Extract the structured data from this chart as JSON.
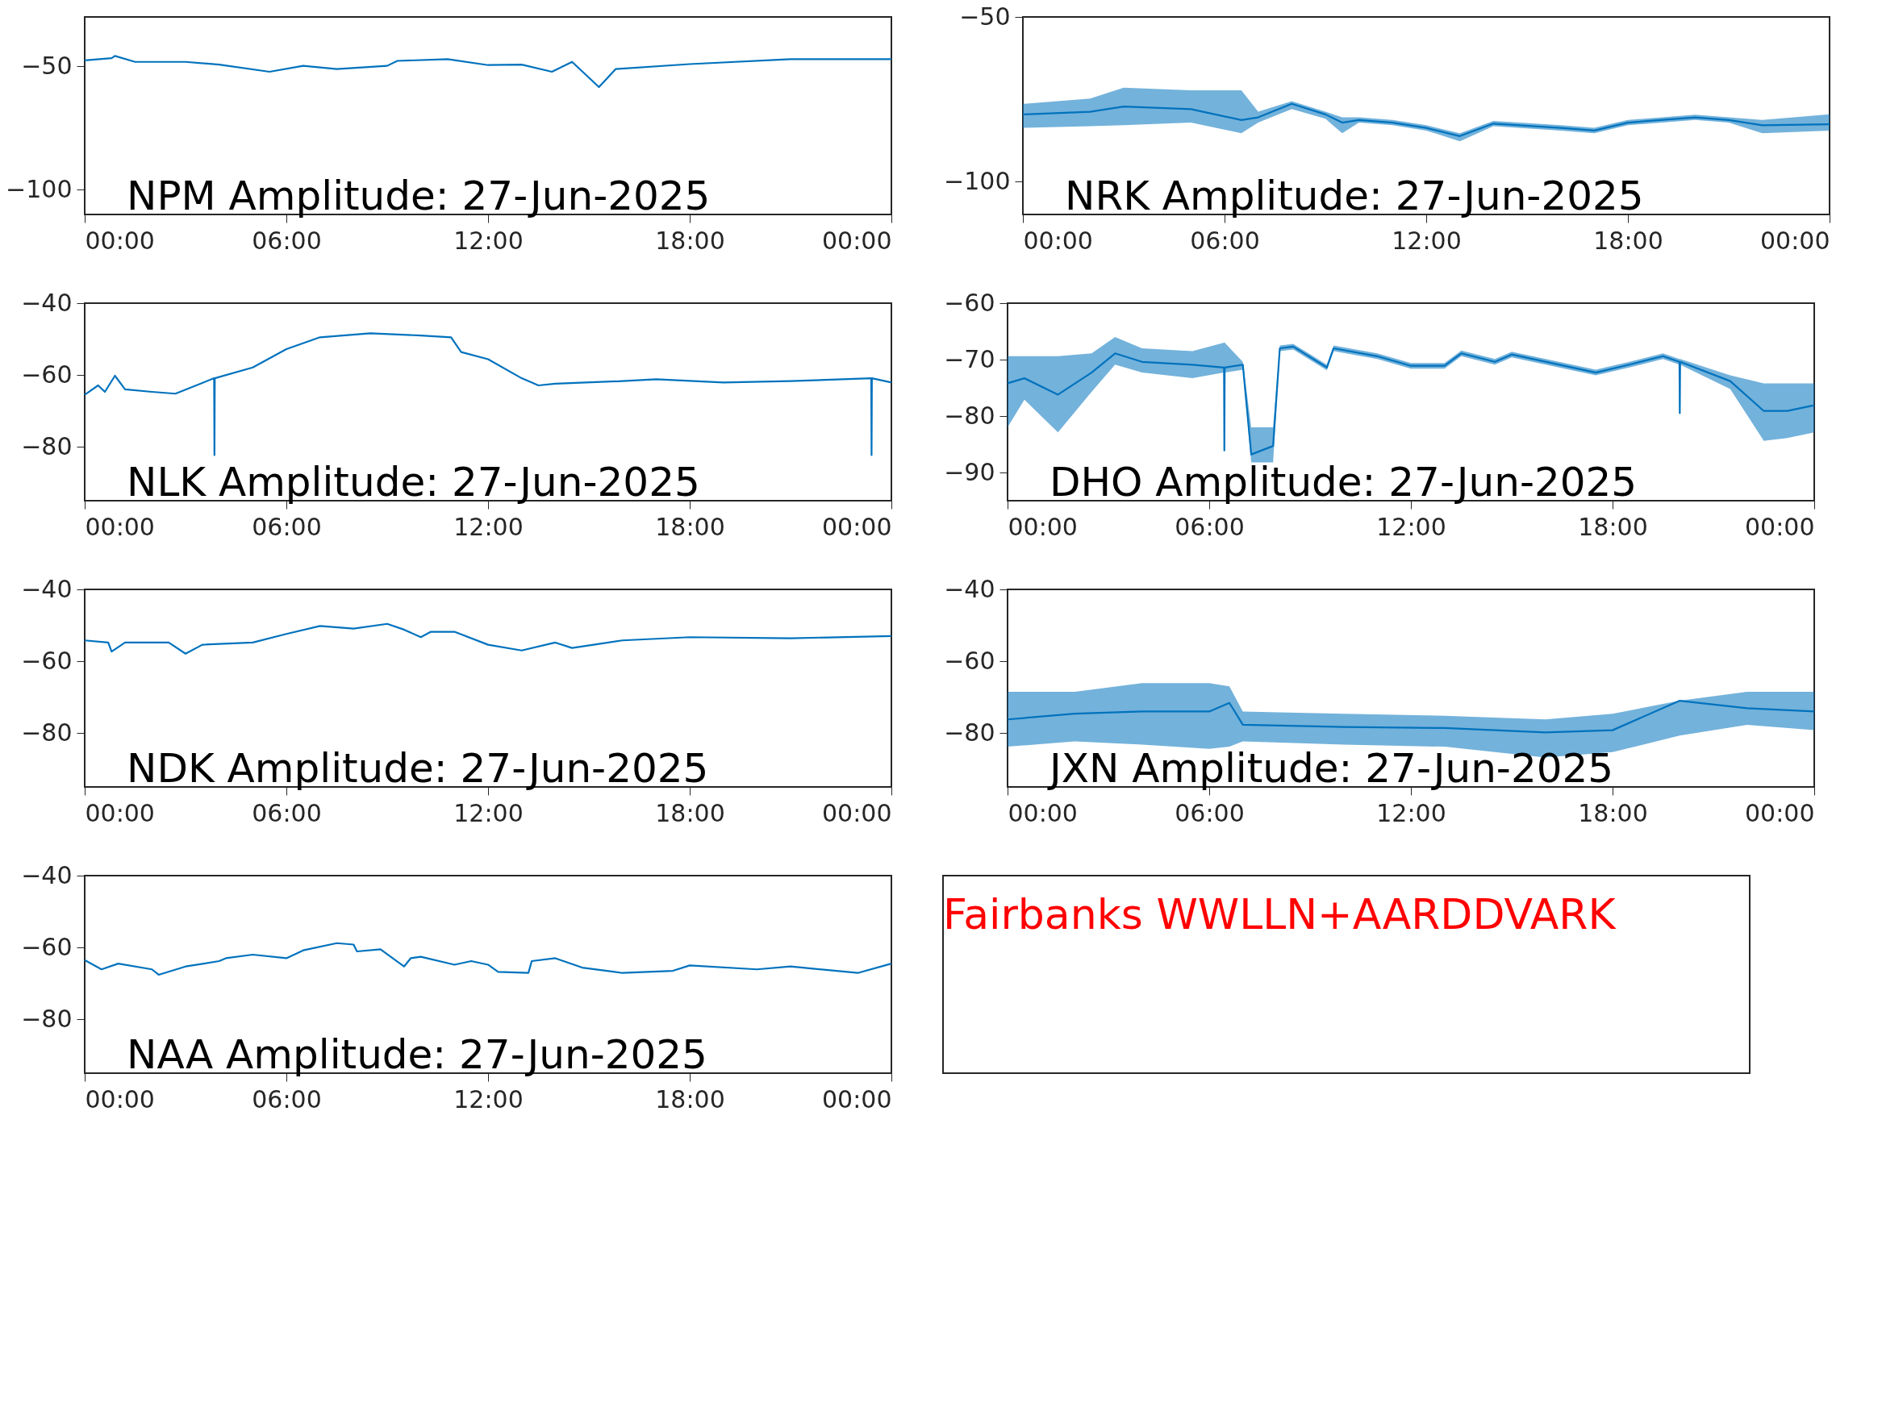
{
  "chart_data": [
    {
      "type": "line",
      "title": "NPM Amplitude: 27-Jun-2025",
      "x": [
        0,
        0.8,
        0.9,
        1.5,
        3,
        4,
        5.5,
        6.5,
        7.5,
        9,
        9.3,
        10.8,
        12,
        13,
        13.9,
        14.5,
        15.3,
        15.8,
        18,
        21,
        24
      ],
      "series": [
        {
          "color": "#0072bd",
          "values": [
            -47.6,
            -46.7,
            -45.8,
            -48.2,
            -48.2,
            -49.3,
            -52.2,
            -49.8,
            -51.1,
            -49.8,
            -47.8,
            -47.1,
            -49.5,
            -49.3,
            -52.2,
            -48.2,
            -58.4,
            -51.1,
            -49.1,
            -47.1,
            -47.1
          ]
        }
      ],
      "xlim": [
        0,
        24
      ],
      "xticks": [
        {
          "value": 0,
          "label": "00:00"
        },
        {
          "value": 6,
          "label": "06:00"
        },
        {
          "value": 12,
          "label": "12:00"
        },
        {
          "value": 18,
          "label": "18:00"
        },
        {
          "value": 24,
          "label": "00:00"
        }
      ],
      "ylim": [
        -110,
        -30
      ],
      "yticks": [
        -100,
        -50
      ],
      "grid": false
    },
    {
      "type": "line",
      "title": "NRK Amplitude: 27-Jun-2025",
      "x": [
        0,
        2,
        3,
        5,
        6.5,
        7,
        8,
        9,
        9.5,
        10,
        11,
        12,
        13,
        14,
        16,
        17,
        18,
        20,
        21,
        22,
        24
      ],
      "series": [
        {
          "color": "#0072bd",
          "values": [
            -79.6,
            -78.8,
            -77.2,
            -78.0,
            -81.3,
            -80.5,
            -76.4,
            -79.6,
            -82.1,
            -81.3,
            -82.1,
            -83.7,
            -86.2,
            -82.4,
            -83.7,
            -84.5,
            -82.1,
            -80.5,
            -81.3,
            -82.9,
            -82.6
          ],
          "lower": [
            -83.7,
            -83.2,
            -82.9,
            -82.1,
            -85.3,
            -82.1,
            -78.0,
            -80.9,
            -85.3,
            -82.1,
            -82.9,
            -84.5,
            -87.8,
            -83.2,
            -84.5,
            -85.3,
            -82.9,
            -81.3,
            -82.1,
            -85.3,
            -84.5
          ],
          "upper": [
            -76.4,
            -74.8,
            -71.5,
            -72.3,
            -72.3,
            -78.8,
            -75.6,
            -78.8,
            -80.5,
            -80.5,
            -81.3,
            -82.9,
            -85.3,
            -81.6,
            -82.9,
            -83.7,
            -81.3,
            -79.7,
            -80.5,
            -81.3,
            -79.6
          ]
        }
      ],
      "xlim": [
        0,
        24
      ],
      "xticks": [
        {
          "value": 0,
          "label": "00:00"
        },
        {
          "value": 6,
          "label": "06:00"
        },
        {
          "value": 12,
          "label": "12:00"
        },
        {
          "value": 18,
          "label": "18:00"
        },
        {
          "value": 24,
          "label": "00:00"
        }
      ],
      "ylim": [
        -110,
        -50
      ],
      "yticks": [
        -100,
        -50
      ],
      "grid": false
    },
    {
      "type": "line",
      "title": "NLK Amplitude: 27-Jun-2025",
      "x": [
        0,
        0.4,
        0.6,
        0.9,
        1.2,
        2,
        2.7,
        3.85,
        3.86,
        3.87,
        5,
        6,
        7,
        8.5,
        10,
        10.9,
        11.2,
        12,
        13,
        13.5,
        14,
        16,
        17,
        19,
        21,
        23.4,
        23.41,
        23.42,
        24
      ],
      "series": [
        {
          "color": "#0072bd",
          "values": [
            -65.5,
            -62.9,
            -64.7,
            -60.2,
            -64.0,
            -64.7,
            -65.2,
            -60.9,
            -82.3,
            -60.9,
            -57.9,
            -52.8,
            -49.5,
            -48.4,
            -49.0,
            -49.5,
            -53.6,
            -55.6,
            -60.9,
            -62.9,
            -62.4,
            -61.7,
            -61.2,
            -62.1,
            -61.7,
            -60.9,
            -82.3,
            -60.9,
            -62.1
          ]
        }
      ],
      "xlim": [
        0,
        24
      ],
      "xticks": [
        {
          "value": 0,
          "label": "00:00"
        },
        {
          "value": 6,
          "label": "06:00"
        },
        {
          "value": 12,
          "label": "12:00"
        },
        {
          "value": 18,
          "label": "18:00"
        },
        {
          "value": 24,
          "label": "00:00"
        }
      ],
      "ylim": [
        -95,
        -40
      ],
      "yticks": [
        -80,
        -60,
        -40
      ],
      "grid": false
    },
    {
      "type": "line",
      "title": "DHO Amplitude: 27-Jun-2025",
      "x": [
        0,
        0.5,
        1.5,
        2.5,
        3.2,
        4,
        5.5,
        6.44,
        6.45,
        6.46,
        7.0,
        7.25,
        7.9,
        8.1,
        8.5,
        9.5,
        9.7,
        11,
        12,
        13,
        13.5,
        14.5,
        15,
        17.5,
        18.5,
        19.5,
        19.99,
        20,
        20.01,
        21.5,
        22.5,
        23.2,
        24
      ],
      "series": [
        {
          "color": "#0072bd",
          "values": [
            -74.2,
            -73.3,
            -76.2,
            -72.3,
            -68.9,
            -70.4,
            -70.9,
            -71.4,
            -86.1,
            -71.4,
            -70.9,
            -86.8,
            -85.3,
            -68.0,
            -67.7,
            -71.4,
            -68.0,
            -69.4,
            -71.1,
            -71.1,
            -68.9,
            -70.4,
            -69.1,
            -72.3,
            -70.9,
            -69.4,
            -70.4,
            -79.5,
            -70.4,
            -73.8,
            -79.1,
            -79.1,
            -78.1
          ],
          "lower": [
            -82.0,
            -77.1,
            -82.9,
            -75.7,
            -70.9,
            -72.3,
            -73.3,
            -72.3,
            -72.3,
            -72.3,
            -71.8,
            -88.2,
            -88.2,
            -68.5,
            -68.2,
            -71.9,
            -68.5,
            -69.9,
            -71.6,
            -71.6,
            -69.4,
            -70.9,
            -69.6,
            -72.8,
            -71.4,
            -69.9,
            -70.9,
            -70.9,
            -70.9,
            -75.2,
            -84.4,
            -83.9,
            -82.9
          ],
          "upper": [
            -69.4,
            -69.4,
            -69.4,
            -68.9,
            -66.0,
            -68.0,
            -68.5,
            -67.0,
            -67.0,
            -67.0,
            -70.4,
            -82.0,
            -82.0,
            -67.5,
            -67.2,
            -70.9,
            -67.5,
            -68.9,
            -70.6,
            -70.6,
            -68.4,
            -69.9,
            -68.6,
            -71.8,
            -70.4,
            -68.9,
            -69.9,
            -69.9,
            -69.9,
            -72.8,
            -74.2,
            -74.2,
            -74.2
          ]
        }
      ],
      "xlim": [
        0,
        24
      ],
      "xticks": [
        {
          "value": 0,
          "label": "00:00"
        },
        {
          "value": 6,
          "label": "06:00"
        },
        {
          "value": 12,
          "label": "12:00"
        },
        {
          "value": 18,
          "label": "18:00"
        },
        {
          "value": 24,
          "label": "00:00"
        }
      ],
      "ylim": [
        -95,
        -60
      ],
      "yticks": [
        -90,
        -80,
        -70,
        -60
      ],
      "grid": false
    },
    {
      "type": "line",
      "title": "NDK Amplitude: 27-Jun-2025",
      "x": [
        0,
        0.7,
        0.8,
        1.2,
        2.5,
        3,
        3.5,
        5,
        6,
        7,
        8,
        9,
        9.5,
        10,
        10.3,
        11,
        12,
        13,
        14,
        14.5,
        16,
        18,
        21,
        24
      ],
      "series": [
        {
          "color": "#0072bd",
          "values": [
            -54.2,
            -54.8,
            -57.3,
            -54.8,
            -54.8,
            -57.9,
            -55.4,
            -54.8,
            -52.4,
            -50.2,
            -50.9,
            -49.6,
            -51.2,
            -53.3,
            -51.8,
            -51.8,
            -55.4,
            -57.0,
            -54.8,
            -56.3,
            -54.2,
            -53.3,
            -53.6,
            -53.0
          ]
        }
      ],
      "xlim": [
        0,
        24
      ],
      "xticks": [
        {
          "value": 0,
          "label": "00:00"
        },
        {
          "value": 6,
          "label": "06:00"
        },
        {
          "value": 12,
          "label": "12:00"
        },
        {
          "value": 18,
          "label": "18:00"
        },
        {
          "value": 24,
          "label": "00:00"
        }
      ],
      "ylim": [
        -95,
        -40
      ],
      "yticks": [
        -80,
        -60,
        -40
      ],
      "grid": false
    },
    {
      "type": "line",
      "title": "JXN Amplitude: 27-Jun-2025",
      "x": [
        0,
        2,
        4,
        6,
        6.6,
        7,
        10,
        13,
        16,
        18,
        20,
        22,
        24
      ],
      "series": [
        {
          "color": "#0072bd",
          "values": [
            -76.2,
            -74.6,
            -74.0,
            -74.0,
            -71.6,
            -77.7,
            -78.3,
            -78.6,
            -79.8,
            -79.2,
            -71.0,
            -73.1,
            -74.0
          ],
          "lower": [
            -83.8,
            -82.3,
            -83.2,
            -84.4,
            -83.8,
            -82.3,
            -83.2,
            -83.8,
            -86.8,
            -85.3,
            -80.7,
            -77.7,
            -79.2
          ],
          "upper": [
            -68.5,
            -68.5,
            -66.1,
            -66.1,
            -67.0,
            -74.0,
            -74.6,
            -75.2,
            -76.2,
            -74.6,
            -71.0,
            -68.5,
            -68.5
          ]
        }
      ],
      "xlim": [
        0,
        24
      ],
      "xticks": [
        {
          "value": 0,
          "label": "00:00"
        },
        {
          "value": 6,
          "label": "06:00"
        },
        {
          "value": 12,
          "label": "12:00"
        },
        {
          "value": 18,
          "label": "18:00"
        },
        {
          "value": 24,
          "label": "00:00"
        }
      ],
      "ylim": [
        -95,
        -40
      ],
      "yticks": [
        -80,
        -60,
        -40
      ],
      "grid": false
    },
    {
      "type": "line",
      "title": "NAA Amplitude: 27-Jun-2025",
      "annotations": [
        "Fairbanks WWLLN+AARDDVARK"
      ],
      "x": [
        0,
        0.5,
        1,
        2,
        2.2,
        3,
        4,
        4.2,
        5,
        6,
        6.5,
        7.5,
        8,
        8.1,
        8.8,
        9.5,
        9.7,
        10,
        11,
        11.5,
        12,
        12.3,
        13.2,
        13.3,
        14,
        14.8,
        16,
        17.5,
        18,
        20,
        21,
        23,
        24
      ],
      "series": [
        {
          "color": "#0072bd",
          "values": [
            -63.5,
            -66.1,
            -64.5,
            -66.1,
            -67.6,
            -65.3,
            -63.8,
            -63.0,
            -62.0,
            -63.0,
            -60.8,
            -58.8,
            -59.2,
            -61.1,
            -60.5,
            -65.3,
            -63.0,
            -62.6,
            -64.8,
            -63.8,
            -64.8,
            -66.8,
            -67.1,
            -63.8,
            -63.0,
            -65.6,
            -67.1,
            -66.5,
            -65.0,
            -66.1,
            -65.3,
            -67.1,
            -64.5
          ]
        }
      ],
      "xlim": [
        0,
        24
      ],
      "xticks": [
        {
          "value": 0,
          "label": "00:00"
        },
        {
          "value": 6,
          "label": "06:00"
        },
        {
          "value": 12,
          "label": "12:00"
        },
        {
          "value": 18,
          "label": "18:00"
        },
        {
          "value": 24,
          "label": "00:00"
        }
      ],
      "ylim": [
        -95,
        -40
      ],
      "yticks": [
        -80,
        -60,
        -40
      ],
      "grid": false
    }
  ]
}
